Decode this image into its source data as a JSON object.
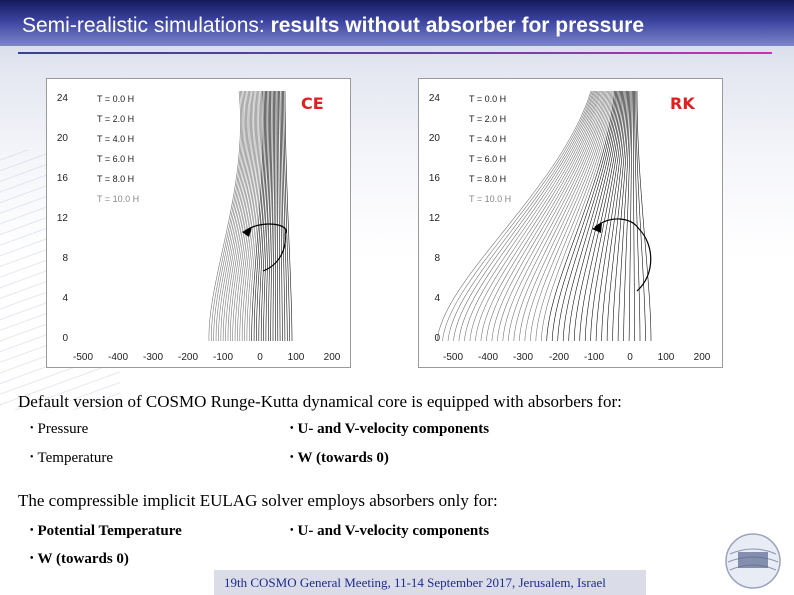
{
  "slide": {
    "title_plain": "Semi-realistic simulations: ",
    "title_bold": "results without absorber for pressure"
  },
  "panels": [
    {
      "label": "CE",
      "legend": [
        "T = 0.0 H",
        "T = 2.0 H",
        "T = 4.0 H",
        "T = 6.0 H",
        "T = 8.0 H",
        "T = 10.0 H"
      ],
      "yticks": [
        "24",
        "20",
        "16",
        "12",
        "8",
        "4",
        "0"
      ],
      "xticks": [
        "-500",
        "-400",
        "-300",
        "-200",
        "-100",
        "0",
        "100",
        "200"
      ]
    },
    {
      "label": "RK",
      "legend": [
        "T = 0.0 H",
        "T = 2.0 H",
        "T = 4.0 H",
        "T = 6.0 H",
        "T = 8.0 H",
        "T = 10.0 H"
      ],
      "yticks": [
        "24",
        "20",
        "16",
        "12",
        "8",
        "4",
        "0"
      ],
      "xticks": [
        "-500",
        "-400",
        "-300",
        "-200",
        "-100",
        "0",
        "100",
        "200"
      ]
    }
  ],
  "text": {
    "rk_intro": "Default version of COSMO Runge-Kutta dynamical core is equipped with absorbers for:",
    "rk_items": [
      "Pressure",
      "Temperature",
      "U- and V-velocity components",
      "W (towards 0)"
    ],
    "eulag_intro": "The compressible implicit EULAG solver employs absorbers only for:",
    "eulag_items": [
      "Potential Temperature",
      "W (towards 0)",
      "U- and V-velocity components"
    ]
  },
  "footer": "19th COSMO General Meeting, 11-14 September 2017, Jerusalem, Israel",
  "colors": {
    "header": "#2a3190",
    "panel_label": "#e02020",
    "footer_text": "#1e2b8c"
  }
}
